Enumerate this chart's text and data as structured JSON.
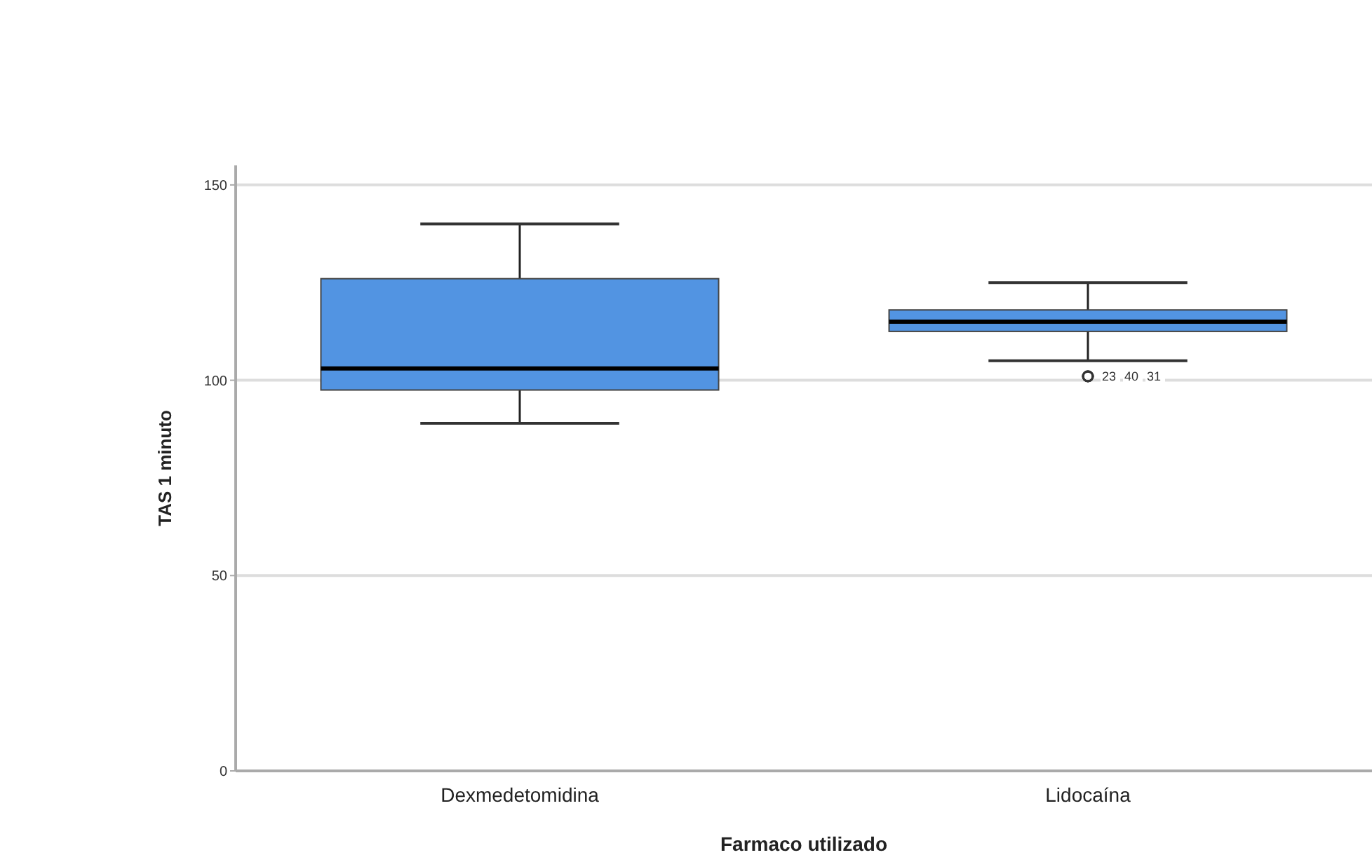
{
  "chart_data": {
    "type": "box",
    "xlabel": "Farmaco utilizado",
    "ylabel": "TAS 1 minuto",
    "categories": [
      "Dexmedetomidina",
      "Lidocaína"
    ],
    "boxes": [
      {
        "low": 89,
        "q1": 97.5,
        "median": 103,
        "q3": 126,
        "high": 140
      },
      {
        "low": 105,
        "q1": 112.5,
        "median": 115,
        "q3": 118,
        "high": 125,
        "outliers": [
          101,
          101,
          101
        ]
      }
    ],
    "color": "#5294e2",
    "ylim": [
      0,
      155
    ],
    "yticks": [
      0,
      50,
      100,
      150
    ],
    "grid": "y",
    "annotations": [
      "23",
      "40",
      "31"
    ]
  }
}
